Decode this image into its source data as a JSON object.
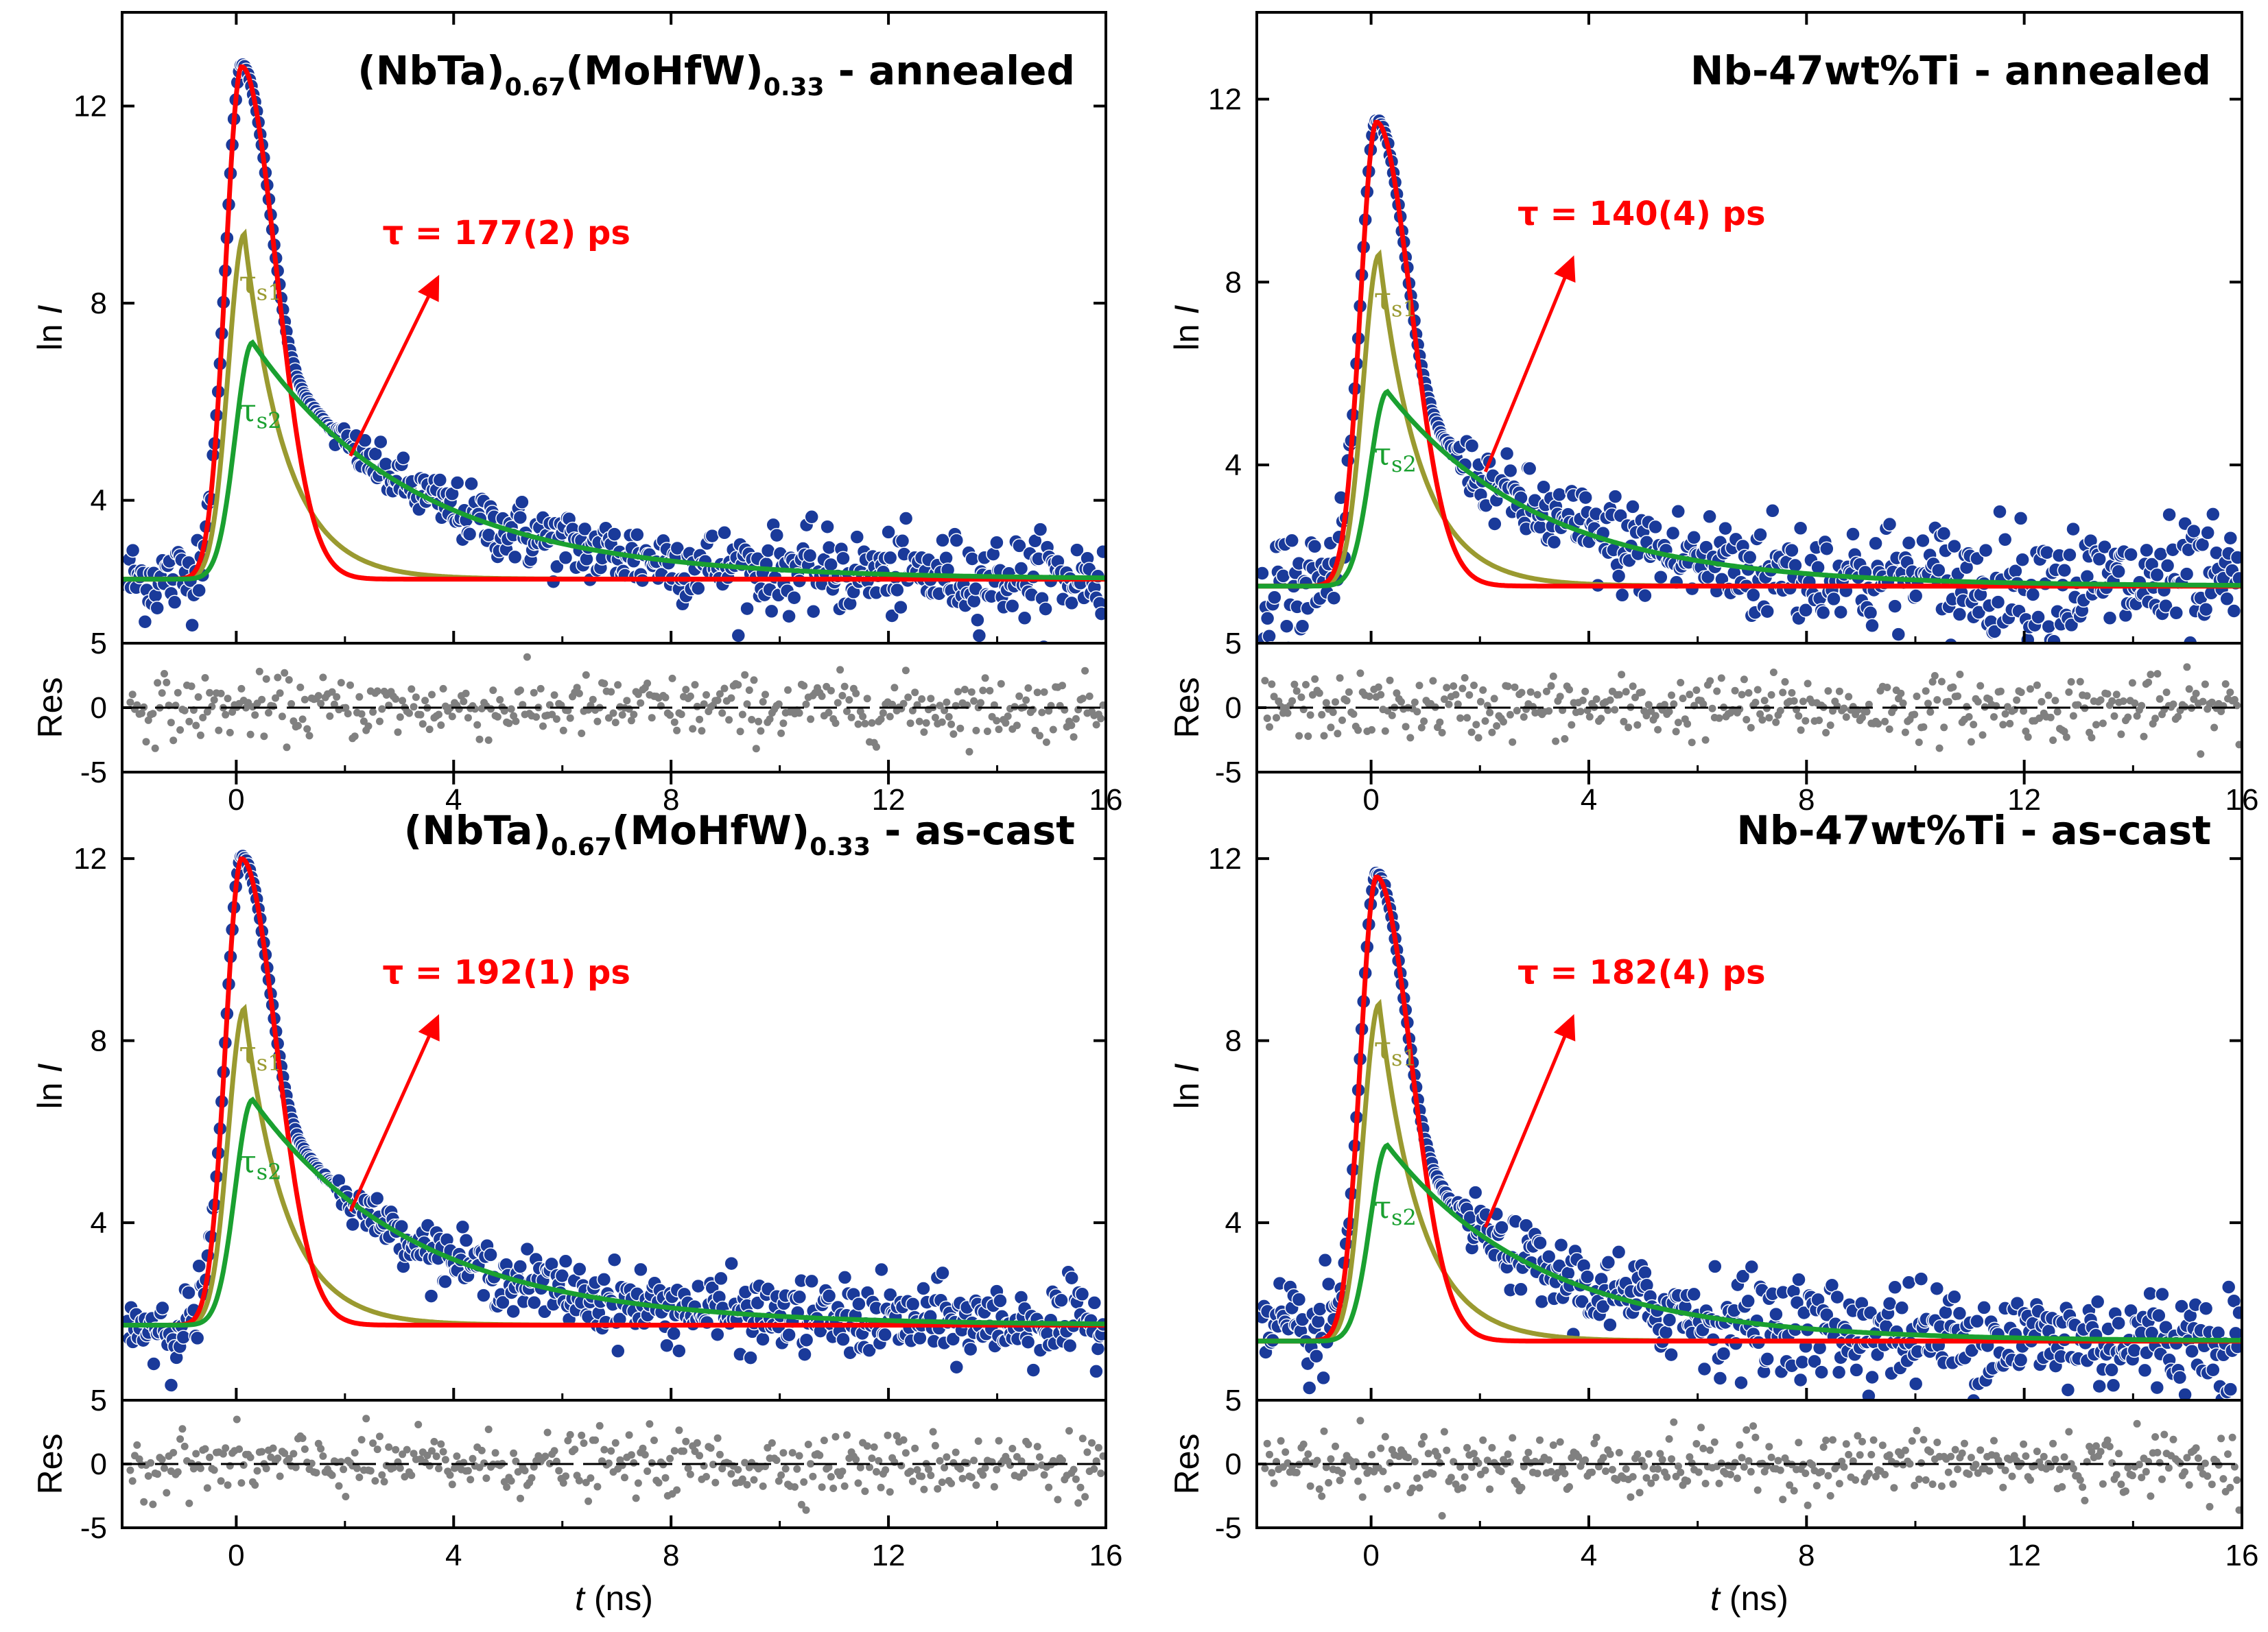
{
  "chart_data": [
    {
      "type": "scatter",
      "title": "(NbTa)0.67(MoHfW)0.33 - annealed",
      "title_parts": [
        "(NbTa)",
        "0.67",
        "(MoHfW)",
        "0.33",
        " - annealed"
      ],
      "xlabel": "t (ns)",
      "ylabel": "ln I",
      "reslabel": "Res",
      "xlim": [
        -2.1,
        16
      ],
      "ylim": [
        1.1,
        13.9
      ],
      "res_ylim": [
        -5,
        5
      ],
      "x_ticks": [
        "0",
        "4",
        "8",
        "12",
        "16"
      ],
      "y_ticks": [
        "4",
        "8",
        "12"
      ],
      "res_ticks": [
        "5",
        "0",
        "-5"
      ],
      "tau_label": "τ = 177(2) ps",
      "components": {
        "s1": "τs1",
        "s2": "τs2"
      },
      "params": {
        "peak": 12.8,
        "bg": 2.4,
        "A1": 9.4,
        "t1": 0.75,
        "A2": 7.2,
        "t2": 3.0,
        "t_onset": -0.8,
        "rise": 0.15,
        "noise": 0.35
      },
      "series": [
        {
          "name": "data",
          "color": "#1a3a9a"
        },
        {
          "name": "τ",
          "color": "#ff0000"
        },
        {
          "name": "τs1",
          "color": "#9a9a30"
        },
        {
          "name": "τs2",
          "color": "#1aa030"
        },
        {
          "name": "residuals",
          "color": "#808080"
        }
      ]
    },
    {
      "type": "scatter",
      "title": "Nb-47wt%Ti - annealed",
      "title_parts": [
        "Nb-47wt%Ti - annealed"
      ],
      "xlabel": "t (ns)",
      "ylabel": "ln I",
      "reslabel": "Res",
      "xlim": [
        -2.1,
        16
      ],
      "ylim": [
        0.1,
        13.9
      ],
      "res_ylim": [
        -5,
        5
      ],
      "x_ticks": [
        "0",
        "4",
        "8",
        "12",
        "16"
      ],
      "y_ticks": [
        "4",
        "8",
        "12"
      ],
      "res_ticks": [
        "5",
        "0",
        "-5"
      ],
      "tau_label": "τ = 140(4) ps",
      "components": {
        "s1": "τs1",
        "s2": "τs2"
      },
      "params": {
        "peak": 11.5,
        "bg": 1.35,
        "A1": 8.6,
        "t1": 0.75,
        "A2": 5.6,
        "t2": 2.8,
        "t_onset": -0.8,
        "rise": 0.15,
        "noise": 0.55
      },
      "series": [
        {
          "name": "data",
          "color": "#1a3a9a"
        },
        {
          "name": "τ",
          "color": "#ff0000"
        },
        {
          "name": "τs1",
          "color": "#9a9a30"
        },
        {
          "name": "τs2",
          "color": "#1aa030"
        },
        {
          "name": "residuals",
          "color": "#808080"
        }
      ]
    },
    {
      "type": "scatter",
      "title": "(NbTa)0.67(MoHfW)0.33 - as-cast",
      "title_parts": [
        "(NbTa)",
        "0.67",
        "(MoHfW)",
        "0.33",
        " - as-cast"
      ],
      "xlabel": "t (ns)",
      "ylabel": "ln I",
      "reslabel": "Res",
      "xlim": [
        -2.1,
        16
      ],
      "ylim": [
        0.1,
        13.9
      ],
      "res_ylim": [
        -5,
        5
      ],
      "x_ticks": [
        "0",
        "4",
        "8",
        "12",
        "16"
      ],
      "y_ticks": [
        "4",
        "8",
        "12"
      ],
      "res_ticks": [
        "5",
        "0",
        "-5"
      ],
      "tau_label": "τ = 192(1) ps",
      "components": {
        "s1": "τs1",
        "s2": "τs2"
      },
      "params": {
        "peak": 12.0,
        "bg": 1.75,
        "A1": 8.7,
        "t1": 0.75,
        "A2": 6.7,
        "t2": 3.0,
        "t_onset": -0.8,
        "rise": 0.15,
        "noise": 0.35
      },
      "series": [
        {
          "name": "data",
          "color": "#1a3a9a"
        },
        {
          "name": "τ",
          "color": "#ff0000"
        },
        {
          "name": "τs1",
          "color": "#9a9a30"
        },
        {
          "name": "τs2",
          "color": "#1aa030"
        },
        {
          "name": "residuals",
          "color": "#808080"
        }
      ]
    },
    {
      "type": "scatter",
      "title": "Nb-47wt%Ti  - as-cast",
      "title_parts": [
        "Nb-47wt%Ti  - as-cast"
      ],
      "xlabel": "t (ns)",
      "ylabel": "ln I",
      "reslabel": "Res",
      "xlim": [
        -2.1,
        16
      ],
      "ylim": [
        0.1,
        13.9
      ],
      "res_ylim": [
        -5,
        5
      ],
      "x_ticks": [
        "0",
        "4",
        "8",
        "12",
        "16"
      ],
      "y_ticks": [
        "4",
        "8",
        "12"
      ],
      "res_ticks": [
        "5",
        "0",
        "-5"
      ],
      "tau_label": "τ = 182(4) ps",
      "components": {
        "s1": "τs1",
        "s2": "τs2"
      },
      "params": {
        "peak": 11.6,
        "bg": 1.4,
        "A1": 8.8,
        "t1": 0.75,
        "A2": 5.7,
        "t2": 2.8,
        "t_onset": -0.8,
        "rise": 0.15,
        "noise": 0.5
      },
      "series": [
        {
          "name": "data",
          "color": "#1a3a9a"
        },
        {
          "name": "τ",
          "color": "#ff0000"
        },
        {
          "name": "τs1",
          "color": "#9a9a30"
        },
        {
          "name": "τs2",
          "color": "#1aa030"
        },
        {
          "name": "residuals",
          "color": "#808080"
        }
      ]
    }
  ]
}
